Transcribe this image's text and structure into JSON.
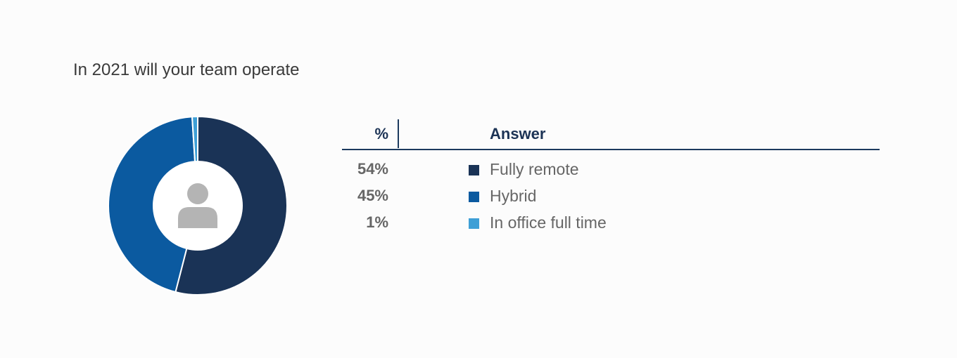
{
  "title": "In 2021 will your team operate",
  "table": {
    "header_percent": "%",
    "header_answer": "Answer"
  },
  "chart_data": {
    "type": "pie",
    "title": "In 2021 will your team operate",
    "categories": [
      "Fully remote",
      "Hybrid",
      "In office full time"
    ],
    "values": [
      54,
      45,
      1
    ],
    "labels": [
      "54%",
      "45%",
      "1%"
    ],
    "colors": [
      "#1a3356",
      "#0b5aa0",
      "#3e9fd6"
    ],
    "center_icon": "person-icon"
  }
}
